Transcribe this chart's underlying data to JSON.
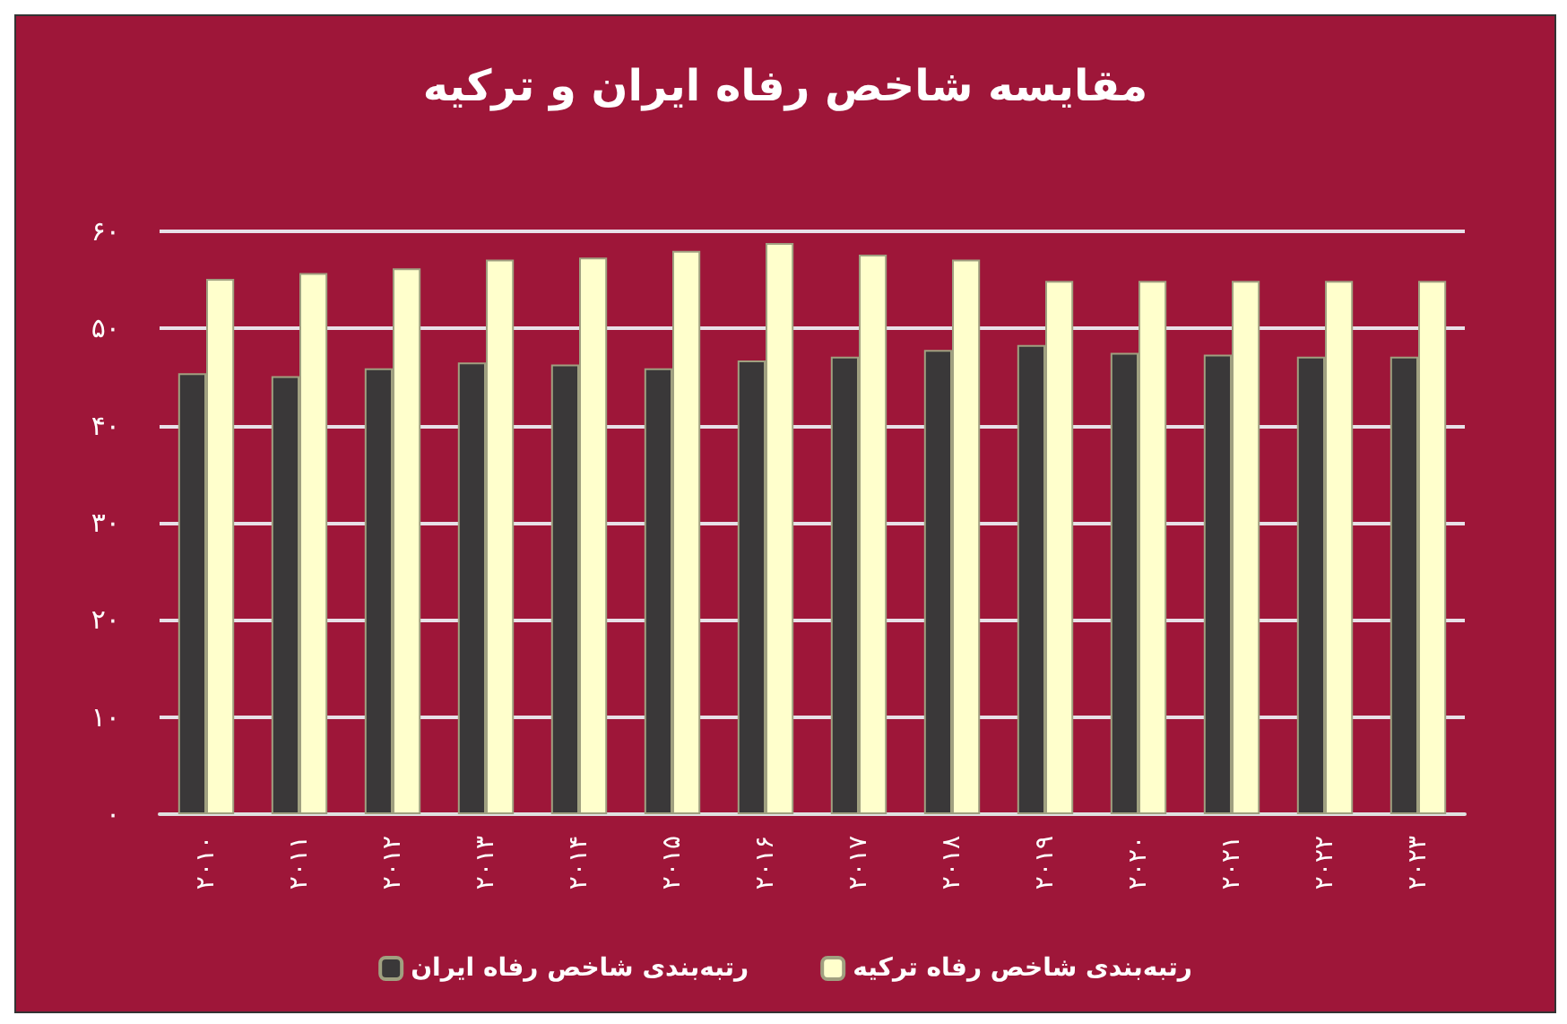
{
  "chart_data": {
    "type": "bar",
    "title": "مقایسه شاخص رفاه ایران و ترکیه",
    "categories": [
      "۲۰۱۰",
      "۲۰۱۱",
      "۲۰۱۲",
      "۲۰۱۳",
      "۲۰۱۴",
      "۲۰۱۵",
      "۲۰۱۶",
      "۲۰۱۷",
      "۲۰۱۸",
      "۲۰۱۹",
      "۲۰۲۰",
      "۲۰۲۱",
      "۲۰۲۲",
      "۲۰۲۳"
    ],
    "series": [
      {
        "name": "رتبه‌بندی شاخص رفاه ایران",
        "color": "#3a3839",
        "values": [
          45.4,
          45.1,
          45.9,
          46.5,
          46.3,
          45.9,
          46.7,
          47.1,
          47.8,
          48.3,
          47.5,
          47.3,
          47.1,
          47.1
        ]
      },
      {
        "name": "رتبه‌بندی شاخص رفاه ترکیه",
        "color": "#ffffcc",
        "values": [
          55.1,
          55.7,
          56.2,
          57.1,
          57.3,
          58.0,
          58.8,
          57.6,
          57.1,
          54.9,
          54.9,
          54.9,
          54.9,
          54.9
        ]
      }
    ],
    "ylim": [
      0,
      60
    ],
    "yticks": [
      {
        "value": 0,
        "label": "۰"
      },
      {
        "value": 10,
        "label": "۱۰"
      },
      {
        "value": 20,
        "label": "۲۰"
      },
      {
        "value": 30,
        "label": "۳۰"
      },
      {
        "value": 40,
        "label": "۴۰"
      },
      {
        "value": 50,
        "label": "۵۰"
      },
      {
        "value": 60,
        "label": "۶۰"
      }
    ],
    "grid": "y",
    "legend": "bottom"
  }
}
